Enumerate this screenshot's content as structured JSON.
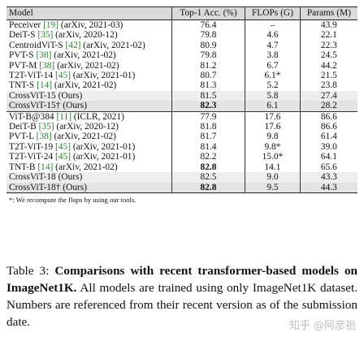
{
  "table": {
    "headers": [
      "Model",
      "Top-1 Acc. (%)",
      "FLOPs (G)",
      "Params (M)"
    ],
    "group1": [
      {
        "model": "Peceiver ",
        "ref": "[19]",
        "source": " (arXiv, 2021-03)",
        "acc": "76.4",
        "flops": "–",
        "params": "43.9"
      },
      {
        "model": "DeiT-S ",
        "ref": "[35]",
        "source": " (arXiv, 2020-12)",
        "acc": "79.8",
        "flops": "4.6",
        "params": "22.1"
      },
      {
        "model": "CentroidViT-S ",
        "ref": "[42]",
        "source": " (arXiv, 2021-02)",
        "acc": "80.9",
        "flops": "4.7",
        "params": "22.3"
      },
      {
        "model": "PVT-S ",
        "ref": "[38]",
        "source": " (arXiv, 2021-02)",
        "acc": "79.8",
        "flops": "3.8",
        "params": "24.5"
      },
      {
        "model": "PVT-M ",
        "ref": "[38]",
        "source": " (arXiv, 2021-02)",
        "acc": "81.2",
        "flops": "6.7",
        "params": "44.2"
      },
      {
        "model": "T2T-ViT-14 ",
        "ref": "[45]",
        "source": " (arXiv, 2021-01)",
        "acc": "80.7",
        "flops": "6.1*",
        "params": "21.5"
      },
      {
        "model": "TNT-S ",
        "ref": "[14]",
        "source": " (arXiv, 2021-02)",
        "acc": "81.3",
        "flops": "5.2",
        "params": "23.8"
      },
      {
        "model": "CrossViT-15 (Ours)",
        "ref": "",
        "source": "",
        "acc": "81.5",
        "flops": "5.8",
        "params": "27.4"
      },
      {
        "model": "CrossViT-15† (Ours)",
        "ref": "",
        "source": "",
        "acc": "82.3",
        "flops": "6.1",
        "params": "28.2"
      }
    ],
    "group2": [
      {
        "model": "ViT-B@384 ",
        "ref": "[11]",
        "source": " (ICLR, 2021)",
        "acc": "77.9",
        "flops": "17.6",
        "params": "86.6"
      },
      {
        "model": "DeiT-B ",
        "ref": "[35]",
        "source": " (arXiv, 2020-12)",
        "acc": "81.8",
        "flops": "17.6",
        "params": "86.6"
      },
      {
        "model": "PVT-L ",
        "ref": "[38]",
        "source": " (arXiv, 2021-02)",
        "acc": "81.7",
        "flops": "9.8",
        "params": "61.4"
      },
      {
        "model": "T2T-ViT-19 ",
        "ref": "[45]",
        "source": " (arXiv, 2021-01)",
        "acc": "81.4",
        "flops": "9.8*",
        "params": "39.0"
      },
      {
        "model": "T2T-ViT-24 ",
        "ref": "[45]",
        "source": " (arXiv, 2021-01)",
        "acc": "82.2",
        "flops": "15.0*",
        "params": "64.1"
      },
      {
        "model": "TNT-B ",
        "ref": "[14]",
        "source": " (arXiv, 2021-02)",
        "acc": "82.8",
        "flops": "14.1",
        "params": "65.6"
      },
      {
        "model": "CrossViT-18 (Ours)",
        "ref": "",
        "source": "",
        "acc": "82.5",
        "flops": "9.0",
        "params": "43.3"
      },
      {
        "model": "CrossViT-18† (Ours)",
        "ref": "",
        "source": "",
        "acc": "82.8",
        "flops": "9.5",
        "params": "44.3"
      }
    ],
    "footnote": "*: We recompute the flops by using our tools."
  },
  "caption": {
    "label": "Table 3:  ",
    "bold": "Comparisons with recent transformer-based models on ImageNet1K.",
    "text": " All models are trained using only ImageNet1K dataset.  Numbers are referenced from their recent version as of the submission date."
  },
  "watermark": "知乎 @阿彦祖"
}
